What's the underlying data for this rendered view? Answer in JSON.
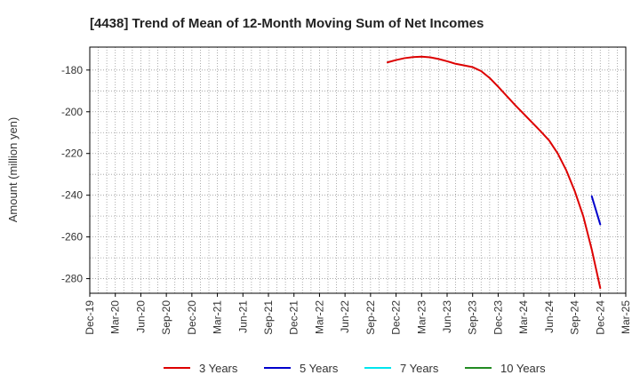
{
  "chart_data": {
    "type": "line",
    "title": "[4438]  Trend of Mean of 12-Month Moving Sum of Net Incomes",
    "ylabel": "Amount (million yen)",
    "xlabel": "",
    "x_ticks": [
      "Dec-19",
      "Mar-20",
      "Jun-20",
      "Sep-20",
      "Dec-20",
      "Mar-21",
      "Jun-21",
      "Sep-21",
      "Dec-21",
      "Mar-22",
      "Jun-22",
      "Sep-22",
      "Dec-22",
      "Mar-23",
      "Jun-23",
      "Sep-23",
      "Dec-23",
      "Mar-24",
      "Jun-24",
      "Sep-24",
      "Dec-24",
      "Mar-25"
    ],
    "y_ticks": [
      -180,
      -200,
      -220,
      -240,
      -260,
      -280
    ],
    "ylim": [
      -287,
      -169
    ],
    "grid": true,
    "legend_position": "bottom",
    "series": [
      {
        "name": "3 Years",
        "color": "#dd0000",
        "points": [
          [
            "Nov-22",
            -176.3
          ],
          [
            "Dec-22",
            -175.2
          ],
          [
            "Jan-23",
            -174.3
          ],
          [
            "Feb-23",
            -173.8
          ],
          [
            "Mar-23",
            -173.6
          ],
          [
            "Apr-23",
            -173.9
          ],
          [
            "May-23",
            -174.7
          ],
          [
            "Jun-23",
            -175.8
          ],
          [
            "Jul-23",
            -177.0
          ],
          [
            "Aug-23",
            -177.8
          ],
          [
            "Sep-23",
            -178.6
          ],
          [
            "Oct-23",
            -180.5
          ],
          [
            "Nov-23",
            -183.8
          ],
          [
            "Dec-23",
            -188.0
          ],
          [
            "Jan-24",
            -192.4
          ],
          [
            "Feb-24",
            -196.8
          ],
          [
            "Mar-24",
            -201.0
          ],
          [
            "Apr-24",
            -205.2
          ],
          [
            "May-24",
            -209.4
          ],
          [
            "Jun-24",
            -213.8
          ],
          [
            "Jul-24",
            -220.0
          ],
          [
            "Aug-24",
            -228.0
          ],
          [
            "Sep-24",
            -238.0
          ],
          [
            "Oct-24",
            -250.0
          ],
          [
            "Nov-24",
            -266.0
          ],
          [
            "Dec-24",
            -284.5
          ]
        ]
      },
      {
        "name": "5 Years",
        "color": "#0000cc",
        "points": [
          [
            "Nov-24",
            -240.5
          ],
          [
            "Dec-24",
            -254.0
          ]
        ]
      },
      {
        "name": "7 Years",
        "color": "#00e5ee",
        "points": []
      },
      {
        "name": "10 Years",
        "color": "#228b22",
        "points": []
      }
    ]
  }
}
